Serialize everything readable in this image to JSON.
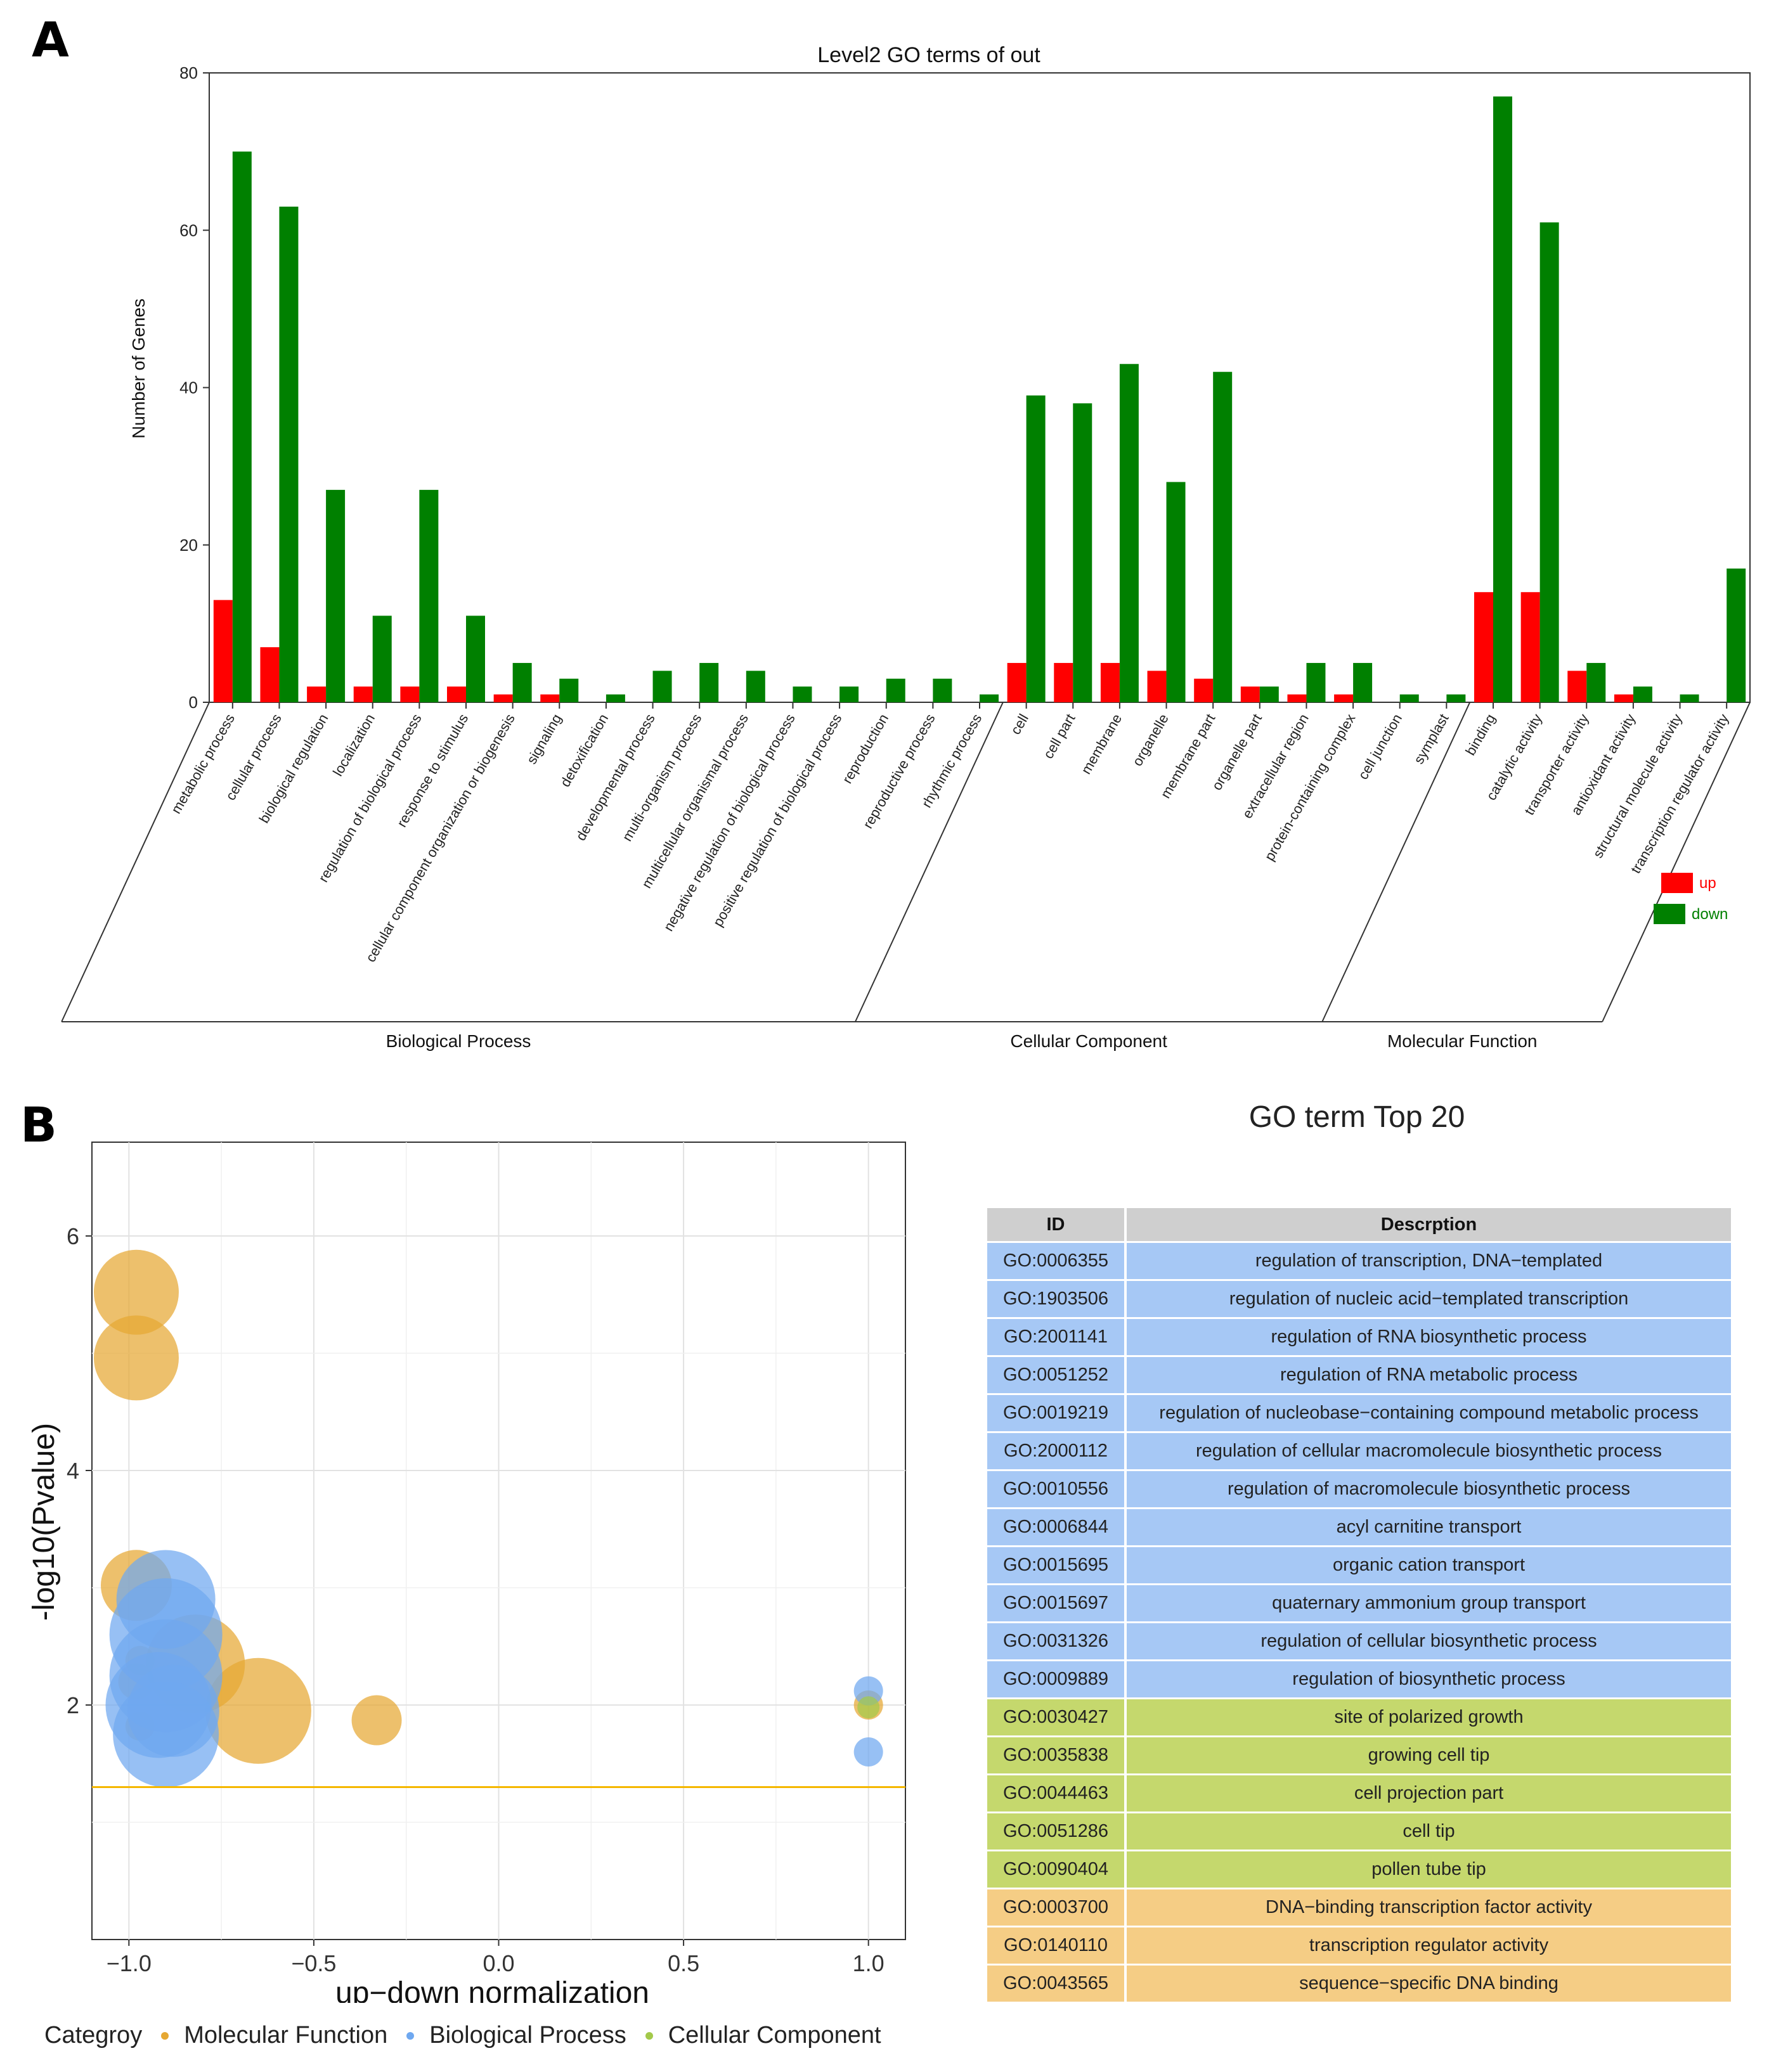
{
  "panel_a": {
    "letter": "A",
    "chart_data": {
      "type": "bar",
      "title": "Level2 GO terms of out",
      "xlabel": "",
      "ylabel": "Number of Genes",
      "ylim": [
        0,
        80
      ],
      "yticks": [
        0,
        20,
        40,
        60,
        80
      ],
      "grid": false,
      "legend_position": "right",
      "categories": [
        "metabolic process",
        "cellular process",
        "biological regulation",
        "localization",
        "regulation of biological process",
        "response to stimulus",
        "cellular component organization or biogenesis",
        "signaling",
        "detoxification",
        "developmental process",
        "multi-organism process",
        "multicellular organismal process",
        "negative regulation of biological process",
        "positive regulation of biological process",
        "reproduction",
        "reproductive process",
        "rhythmic process",
        "cell",
        "cell part",
        "membrane",
        "organelle",
        "membrane part",
        "organelle part",
        "extracellular region",
        "protein-containing complex",
        "cell junction",
        "symplast",
        "binding",
        "catalytic activity",
        "transporter activity",
        "antioxidant activity",
        "structural molecule activity",
        "transcription regulator activity"
      ],
      "series": [
        {
          "name": "up",
          "color": "#ff0000",
          "values": [
            13,
            7,
            2,
            2,
            2,
            2,
            1,
            1,
            0,
            0,
            0,
            0,
            0,
            0,
            0,
            0,
            0,
            5,
            5,
            5,
            4,
            3,
            2,
            1,
            1,
            0,
            0,
            14,
            14,
            4,
            1,
            0,
            0
          ]
        },
        {
          "name": "down",
          "color": "#008000",
          "values": [
            70,
            63,
            27,
            11,
            27,
            11,
            5,
            3,
            1,
            4,
            5,
            4,
            2,
            2,
            3,
            3,
            1,
            39,
            38,
            43,
            28,
            42,
            2,
            5,
            5,
            1,
            1,
            77,
            61,
            5,
            2,
            1,
            17
          ]
        }
      ],
      "groups": [
        {
          "name": "Biological Process",
          "count": 17
        },
        {
          "name": "Cellular Component",
          "count": 10
        },
        {
          "name": "Molecular Function",
          "count": 6
        }
      ]
    }
  },
  "panel_b": {
    "letter": "B",
    "chart_data": {
      "type": "scatter",
      "title": "",
      "xlabel": "up−down normalization",
      "ylabel": "-log10(Pvalue)",
      "xlim": [
        -1.1,
        1.1
      ],
      "ylim": [
        0.0,
        6.8
      ],
      "xticks": [
        -1.0,
        -0.5,
        0.0,
        0.5,
        1.0
      ],
      "xtick_labels": [
        "−1.0",
        "−0.5",
        "0.0",
        "0.5",
        "1.0"
      ],
      "yticks": [
        2,
        4,
        6
      ],
      "threshold_y": 1.3,
      "threshold_color": "#f5b700",
      "grid": true,
      "legend_title": "Categroy",
      "legend_position": "bottom",
      "series": [
        {
          "name": "Molecular Function",
          "color": "#e6a833",
          "points": [
            {
              "x": -0.98,
              "y": 5.52,
              "size": 10
            },
            {
              "x": -0.98,
              "y": 4.96,
              "size": 10
            },
            {
              "x": -0.98,
              "y": 3.02,
              "size": 8
            },
            {
              "x": -0.82,
              "y": 2.35,
              "size": 12
            },
            {
              "x": -0.65,
              "y": 1.95,
              "size": 13
            },
            {
              "x": -0.33,
              "y": 1.87,
              "size": 5
            },
            {
              "x": -0.97,
              "y": 2.38,
              "size": 2
            },
            {
              "x": -0.98,
              "y": 2.2,
              "size": 3
            },
            {
              "x": -0.97,
              "y": 1.82,
              "size": 2
            },
            {
              "x": 1.0,
              "y": 2.0,
              "size": 2
            }
          ]
        },
        {
          "name": "Biological Process",
          "color": "#6fa8f0",
          "points": [
            {
              "x": -0.9,
              "y": 2.9,
              "size": 12
            },
            {
              "x": -0.9,
              "y": 2.6,
              "size": 14
            },
            {
              "x": -0.9,
              "y": 2.25,
              "size": 14
            },
            {
              "x": -0.92,
              "y": 2.0,
              "size": 13
            },
            {
              "x": -0.9,
              "y": 1.75,
              "size": 13
            },
            {
              "x": -0.88,
              "y": 1.95,
              "size": 11
            },
            {
              "x": 1.0,
              "y": 2.12,
              "size": 2
            },
            {
              "x": 1.0,
              "y": 1.6,
              "size": 2
            }
          ]
        },
        {
          "name": "Cellular Component",
          "color": "#a3c94a",
          "points": [
            {
              "x": 1.0,
              "y": 1.98,
              "size": 1
            }
          ]
        }
      ]
    }
  },
  "table": {
    "title": "GO term Top 20",
    "headers": [
      "ID",
      "Descrption"
    ],
    "colors": {
      "Biological Process": "#a6c8f5",
      "Cellular Component": "#c5d86d",
      "Molecular Function": "#f5cd85"
    },
    "rows": [
      {
        "id": "GO:0006355",
        "desc": "regulation of transcription, DNA−templated",
        "cat": "Biological Process"
      },
      {
        "id": "GO:1903506",
        "desc": "regulation of nucleic acid−templated transcription",
        "cat": "Biological Process"
      },
      {
        "id": "GO:2001141",
        "desc": "regulation of RNA biosynthetic process",
        "cat": "Biological Process"
      },
      {
        "id": "GO:0051252",
        "desc": "regulation of RNA metabolic process",
        "cat": "Biological Process"
      },
      {
        "id": "GO:0019219",
        "desc": "regulation of nucleobase−containing compound metabolic process",
        "cat": "Biological Process"
      },
      {
        "id": "GO:2000112",
        "desc": "regulation of cellular macromolecule biosynthetic process",
        "cat": "Biological Process"
      },
      {
        "id": "GO:0010556",
        "desc": "regulation of macromolecule biosynthetic process",
        "cat": "Biological Process"
      },
      {
        "id": "GO:0006844",
        "desc": "acyl carnitine transport",
        "cat": "Biological Process"
      },
      {
        "id": "GO:0015695",
        "desc": "organic cation transport",
        "cat": "Biological Process"
      },
      {
        "id": "GO:0015697",
        "desc": "quaternary ammonium group transport",
        "cat": "Biological Process"
      },
      {
        "id": "GO:0031326",
        "desc": "regulation of cellular biosynthetic process",
        "cat": "Biological Process"
      },
      {
        "id": "GO:0009889",
        "desc": "regulation of biosynthetic process",
        "cat": "Biological Process"
      },
      {
        "id": "GO:0030427",
        "desc": "site of polarized growth",
        "cat": "Cellular Component"
      },
      {
        "id": "GO:0035838",
        "desc": "growing cell tip",
        "cat": "Cellular Component"
      },
      {
        "id": "GO:0044463",
        "desc": "cell projection part",
        "cat": "Cellular Component"
      },
      {
        "id": "GO:0051286",
        "desc": "cell tip",
        "cat": "Cellular Component"
      },
      {
        "id": "GO:0090404",
        "desc": "pollen tube tip",
        "cat": "Cellular Component"
      },
      {
        "id": "GO:0003700",
        "desc": "DNA−binding transcription factor activity",
        "cat": "Molecular Function"
      },
      {
        "id": "GO:0140110",
        "desc": "transcription regulator activity",
        "cat": "Molecular Function"
      },
      {
        "id": "GO:0043565",
        "desc": "sequence−specific DNA binding",
        "cat": "Molecular Function"
      }
    ]
  }
}
